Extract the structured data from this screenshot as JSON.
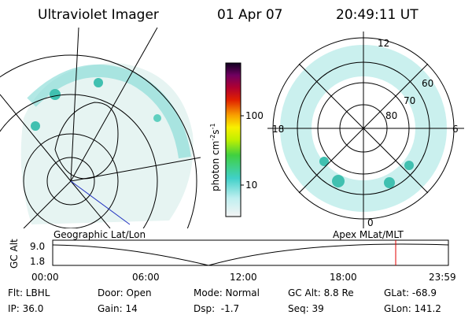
{
  "header": {
    "title": "Ultraviolet Imager",
    "date": "01 Apr 07",
    "time": "20:49:11 UT"
  },
  "colorbar": {
    "unit": "photon cm",
    "exp1": "-2",
    "unit2": "s",
    "exp2": "-1",
    "ticks": [
      "100",
      "10"
    ]
  },
  "geographic_panel": {
    "label": "Geographic Lat/Lon"
  },
  "polar_panel": {
    "label": "Apex MLat/MLT",
    "mlt_labels": [
      "12",
      "18",
      "6",
      "0"
    ],
    "lat_labels": [
      "60",
      "70",
      "80"
    ]
  },
  "altitude_plot": {
    "ylabel": "GC Alt",
    "yticks": [
      "9.0",
      "1.8"
    ],
    "xticks": [
      "00:00",
      "06:00",
      "12:00",
      "18:00",
      "23:59"
    ]
  },
  "footer": {
    "rows": [
      [
        "Flt: LBHL",
        "Door: Open",
        "Mode: Normal",
        "GC Alt: 8.8 Re",
        "GLat: -68.9"
      ],
      [
        "IP: 36.0",
        "Gain: 14",
        "Dsp:  -1.7",
        "Seq: 39",
        "GLon: 141.2"
      ]
    ]
  }
}
